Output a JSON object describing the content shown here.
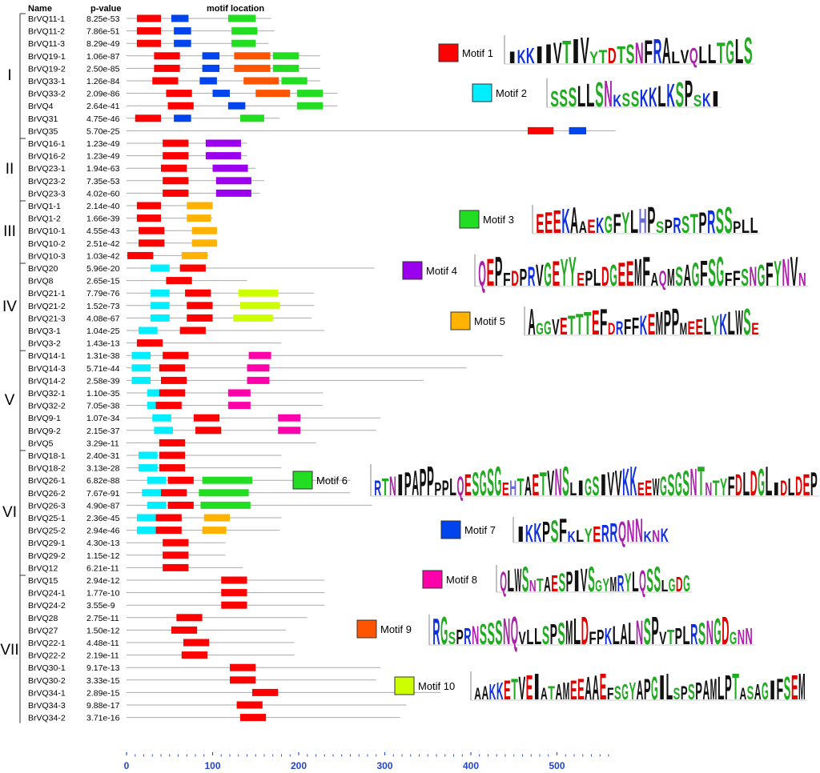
{
  "headers": {
    "name": "Name",
    "pvalue": "p-value",
    "motif_location": "motif location"
  },
  "axis": {
    "ticks": [
      0,
      100,
      200,
      300,
      400,
      500
    ]
  },
  "colors": {
    "1": "#ff0000",
    "2": "#00eeff",
    "3": "#22dd22",
    "4": "#9b00ee",
    "5": "#ffb300",
    "6": "#22dd22",
    "7": "#0044ee",
    "8": "#ff00aa",
    "9": "#ff5500",
    "10": "#ccff00"
  },
  "groups": [
    {
      "label": "I"
    },
    {
      "label": "II"
    },
    {
      "label": "III"
    },
    {
      "label": "IV"
    },
    {
      "label": "V"
    },
    {
      "label": "VI"
    },
    {
      "label": "VII"
    }
  ],
  "genes": [
    {
      "name": "BrVQ11-1",
      "p": "8.25e-53",
      "len": 168,
      "motifs": [
        [
          1,
          12,
          40
        ],
        [
          7,
          52,
          72
        ],
        [
          3,
          118,
          150
        ]
      ]
    },
    {
      "name": "BrVQ11-2",
      "p": "7.86e-51",
      "len": 172,
      "motifs": [
        [
          1,
          12,
          40
        ],
        [
          7,
          55,
          75
        ],
        [
          3,
          122,
          152
        ]
      ]
    },
    {
      "name": "BrVQ11-3",
      "p": "8.29e-49",
      "len": 165,
      "motifs": [
        [
          1,
          12,
          40
        ],
        [
          7,
          55,
          75
        ],
        [
          3,
          122,
          150
        ]
      ]
    },
    {
      "name": "BrVQ19-1",
      "p": "1.06e-87",
      "len": 225,
      "motifs": [
        [
          1,
          32,
          62
        ],
        [
          7,
          88,
          108
        ],
        [
          9,
          125,
          167
        ],
        [
          3,
          170,
          200
        ]
      ]
    },
    {
      "name": "BrVQ19-2",
      "p": "2.50e-85",
      "len": 225,
      "motifs": [
        [
          1,
          32,
          62
        ],
        [
          7,
          88,
          108
        ],
        [
          9,
          125,
          167
        ],
        [
          3,
          170,
          200
        ]
      ]
    },
    {
      "name": "BrVQ33-1",
      "p": "1.26e-84",
      "len": 225,
      "motifs": [
        [
          1,
          30,
          60
        ],
        [
          7,
          85,
          105
        ],
        [
          9,
          136,
          177
        ],
        [
          3,
          180,
          210
        ]
      ]
    },
    {
      "name": "BrVQ33-2",
      "p": "2.09e-86",
      "len": 245,
      "motifs": [
        [
          1,
          46,
          76
        ],
        [
          7,
          100,
          120
        ],
        [
          9,
          150,
          190
        ],
        [
          3,
          198,
          228
        ]
      ]
    },
    {
      "name": "BrVQ4",
      "p": "2.64e-41",
      "len": 245,
      "motifs": [
        [
          1,
          48,
          78
        ],
        [
          7,
          118,
          138
        ],
        [
          3,
          198,
          228
        ]
      ]
    },
    {
      "name": "BrVQ31",
      "p": "4.75e-46",
      "len": 178,
      "motifs": [
        [
          1,
          10,
          40
        ],
        [
          7,
          55,
          75
        ],
        [
          3,
          132,
          160
        ]
      ]
    },
    {
      "name": "BrVQ35",
      "p": "5.70e-25",
      "len": 568,
      "motifs": [
        [
          1,
          466,
          496
        ],
        [
          7,
          514,
          534
        ]
      ]
    },
    {
      "name": "BrVQ16-1",
      "p": "1.23e-49",
      "len": 140,
      "motifs": [
        [
          1,
          42,
          72
        ],
        [
          4,
          92,
          133
        ]
      ]
    },
    {
      "name": "BrVQ16-2",
      "p": "1.23e-49",
      "len": 140,
      "motifs": [
        [
          1,
          42,
          72
        ],
        [
          4,
          92,
          133
        ]
      ]
    },
    {
      "name": "BrVQ23-1",
      "p": "1.94e-63",
      "len": 150,
      "motifs": [
        [
          1,
          40,
          70
        ],
        [
          4,
          100,
          141
        ]
      ]
    },
    {
      "name": "BrVQ23-2",
      "p": "7.35e-53",
      "len": 160,
      "motifs": [
        [
          1,
          42,
          72
        ],
        [
          4,
          104,
          145
        ]
      ]
    },
    {
      "name": "BrVQ23-3",
      "p": "4.02e-60",
      "len": 155,
      "motifs": [
        [
          1,
          42,
          72
        ],
        [
          4,
          104,
          145
        ]
      ]
    },
    {
      "name": "BrVQ1-1",
      "p": "2.14e-40",
      "len": 100,
      "motifs": [
        [
          1,
          12,
          40
        ],
        [
          5,
          70,
          100
        ]
      ]
    },
    {
      "name": "BrVQ1-2",
      "p": "1.66e-39",
      "len": 100,
      "motifs": [
        [
          1,
          12,
          40
        ],
        [
          5,
          70,
          98
        ]
      ]
    },
    {
      "name": "BrVQ10-1",
      "p": "4.55e-43",
      "len": 105,
      "motifs": [
        [
          1,
          14,
          44
        ],
        [
          5,
          76,
          105
        ]
      ]
    },
    {
      "name": "BrVQ10-2",
      "p": "2.51e-42",
      "len": 105,
      "motifs": [
        [
          1,
          14,
          44
        ],
        [
          5,
          76,
          105
        ]
      ]
    },
    {
      "name": "BrVQ10-3",
      "p": "1.03e-42",
      "len": 95,
      "motifs": [
        [
          1,
          1,
          31
        ],
        [
          5,
          64,
          94
        ]
      ]
    },
    {
      "name": "BrVQ20",
      "p": "5.96e-20",
      "len": 288,
      "motifs": [
        [
          2,
          28,
          50
        ],
        [
          1,
          62,
          92
        ]
      ]
    },
    {
      "name": "BrVQ8",
      "p": "2.65e-15",
      "len": 140,
      "motifs": [
        [
          1,
          46,
          76
        ]
      ]
    },
    {
      "name": "BrVQ21-1",
      "p": "7.79e-76",
      "len": 218,
      "motifs": [
        [
          2,
          28,
          50
        ],
        [
          1,
          68,
          98
        ],
        [
          10,
          130,
          176
        ]
      ]
    },
    {
      "name": "BrVQ21-2",
      "p": "1.52e-73",
      "len": 218,
      "motifs": [
        [
          2,
          28,
          50
        ],
        [
          1,
          70,
          100
        ],
        [
          10,
          132,
          178
        ]
      ]
    },
    {
      "name": "BrVQ21-3",
      "p": "4.08e-67",
      "len": 215,
      "motifs": [
        [
          2,
          28,
          50
        ],
        [
          1,
          70,
          100
        ],
        [
          10,
          124,
          170
        ]
      ]
    },
    {
      "name": "BrVQ3-1",
      "p": "1.04e-25",
      "len": 230,
      "motifs": [
        [
          2,
          14,
          36
        ],
        [
          1,
          62,
          92
        ]
      ]
    },
    {
      "name": "BrVQ3-2",
      "p": "1.43e-13",
      "len": 180,
      "motifs": [
        [
          1,
          12,
          42
        ]
      ]
    },
    {
      "name": "BrVQ14-1",
      "p": "1.31e-38",
      "len": 437,
      "motifs": [
        [
          2,
          6,
          28
        ],
        [
          1,
          42,
          72
        ],
        [
          8,
          142,
          168
        ]
      ]
    },
    {
      "name": "BrVQ14-3",
      "p": "5.71e-44",
      "len": 395,
      "motifs": [
        [
          2,
          6,
          28
        ],
        [
          1,
          38,
          68
        ],
        [
          8,
          140,
          166
        ]
      ]
    },
    {
      "name": "BrVQ14-2",
      "p": "2.58e-39",
      "len": 345,
      "motifs": [
        [
          2,
          6,
          28
        ],
        [
          1,
          40,
          70
        ],
        [
          8,
          140,
          166
        ]
      ]
    },
    {
      "name": "BrVQ32-1",
      "p": "1.10e-35",
      "len": 228,
      "motifs": [
        [
          2,
          24,
          46
        ],
        [
          1,
          38,
          68
        ],
        [
          8,
          118,
          144
        ]
      ]
    },
    {
      "name": "BrVQ32-2",
      "p": "7.05e-38",
      "len": 228,
      "motifs": [
        [
          2,
          24,
          46
        ],
        [
          1,
          34,
          64
        ],
        [
          8,
          118,
          144
        ]
      ]
    },
    {
      "name": "BrVQ9-1",
      "p": "1.07e-34",
      "len": 295,
      "motifs": [
        [
          2,
          30,
          52
        ],
        [
          1,
          78,
          108
        ],
        [
          8,
          176,
          202
        ]
      ]
    },
    {
      "name": "BrVQ9-2",
      "p": "2.15e-37",
      "len": 290,
      "motifs": [
        [
          2,
          32,
          54
        ],
        [
          1,
          80,
          110
        ],
        [
          8,
          176,
          202
        ]
      ]
    },
    {
      "name": "BrVQ5",
      "p": "3.29e-11",
      "len": 220,
      "motifs": [
        [
          1,
          38,
          68
        ]
      ]
    },
    {
      "name": "BrVQ18-1",
      "p": "2.40e-31",
      "len": 180,
      "motifs": [
        [
          2,
          14,
          36
        ],
        [
          1,
          38,
          68
        ]
      ]
    },
    {
      "name": "BrVQ18-2",
      "p": "3.13e-28",
      "len": 180,
      "motifs": [
        [
          2,
          14,
          36
        ],
        [
          1,
          38,
          68
        ]
      ]
    },
    {
      "name": "BrVQ26-1",
      "p": "6.82e-88",
      "len": 260,
      "motifs": [
        [
          2,
          24,
          46
        ],
        [
          1,
          48,
          78
        ],
        [
          6,
          88,
          146
        ]
      ]
    },
    {
      "name": "BrVQ26-2",
      "p": "7.67e-91",
      "len": 260,
      "motifs": [
        [
          2,
          18,
          40
        ],
        [
          1,
          40,
          70
        ],
        [
          6,
          84,
          142
        ]
      ]
    },
    {
      "name": "BrVQ26-3",
      "p": "4.90e-87",
      "len": 285,
      "motifs": [
        [
          2,
          24,
          46
        ],
        [
          1,
          48,
          78
        ],
        [
          6,
          86,
          144
        ]
      ]
    },
    {
      "name": "BrVQ25-1",
      "p": "2.36e-45",
      "len": 180,
      "motifs": [
        [
          2,
          12,
          34
        ],
        [
          1,
          34,
          64
        ],
        [
          5,
          90,
          120
        ]
      ]
    },
    {
      "name": "BrVQ25-2",
      "p": "2.94e-46",
      "len": 178,
      "motifs": [
        [
          2,
          12,
          34
        ],
        [
          1,
          34,
          64
        ],
        [
          5,
          88,
          116
        ]
      ]
    },
    {
      "name": "BrVQ29-1",
      "p": "4.30e-13",
      "len": 115,
      "motifs": [
        [
          1,
          42,
          72
        ]
      ]
    },
    {
      "name": "BrVQ29-2",
      "p": "1.15e-12",
      "len": 115,
      "motifs": [
        [
          1,
          42,
          72
        ]
      ]
    },
    {
      "name": "BrVQ12",
      "p": "6.21e-11",
      "len": 135,
      "motifs": [
        [
          1,
          42,
          72
        ]
      ]
    },
    {
      "name": "BrVQ15",
      "p": "2.94e-12",
      "len": 230,
      "motifs": [
        [
          1,
          110,
          140
        ]
      ]
    },
    {
      "name": "BrVQ24-1",
      "p": "1.77e-10",
      "len": 230,
      "motifs": [
        [
          1,
          110,
          140
        ]
      ]
    },
    {
      "name": "BrVQ24-2",
      "p": "3.55e-9",
      "len": 230,
      "motifs": [
        [
          1,
          110,
          140
        ]
      ]
    },
    {
      "name": "BrVQ28",
      "p": "2.75e-11",
      "len": 210,
      "motifs": [
        [
          1,
          58,
          88
        ]
      ]
    },
    {
      "name": "BrVQ27",
      "p": "1.50e-12",
      "len": 185,
      "motifs": [
        [
          1,
          52,
          82
        ]
      ]
    },
    {
      "name": "BrVQ22-1",
      "p": "4.48e-11",
      "len": 195,
      "motifs": [
        [
          1,
          66,
          96
        ]
      ]
    },
    {
      "name": "BrVQ22-2",
      "p": "2.19e-11",
      "len": 195,
      "motifs": [
        [
          1,
          64,
          94
        ]
      ]
    },
    {
      "name": "BrVQ30-1",
      "p": "9.17e-13",
      "len": 295,
      "motifs": [
        [
          1,
          120,
          150
        ]
      ]
    },
    {
      "name": "BrVQ30-2",
      "p": "3.33e-15",
      "len": 290,
      "motifs": [
        [
          1,
          120,
          150
        ]
      ]
    },
    {
      "name": "BrVQ34-1",
      "p": "2.89e-15",
      "len": 365,
      "motifs": [
        [
          1,
          146,
          176
        ]
      ]
    },
    {
      "name": "BrVQ34-3",
      "p": "9.88e-17",
      "len": 325,
      "motifs": [
        [
          1,
          128,
          158
        ]
      ]
    },
    {
      "name": "BrVQ34-2",
      "p": "3.71e-16",
      "len": 318,
      "motifs": [
        [
          1,
          132,
          162
        ]
      ]
    }
  ],
  "motifs": [
    {
      "id": 1,
      "label": "Motif 1",
      "letters": "IKKIIVTIVYTDTSNFRALVQLLTGLS"
    },
    {
      "id": 2,
      "label": "Motif 2",
      "letters": "SSSLLSNKSSKKLKSPSKI"
    },
    {
      "id": 3,
      "label": "Motif 3",
      "letters": "EEEKAAEKGFYLHPSPRSTPRSSPLL"
    },
    {
      "id": 4,
      "label": "Motif 4",
      "letters": "QEPFDPRVGEYYEPLDGEEMFAQMSAGFSGFFSNGFYNVN"
    },
    {
      "id": 5,
      "label": "Motif 5",
      "letters": "AGGVETTTEFDRFFKEMPPMEELYKLWSE"
    },
    {
      "id": 6,
      "label": "Motif 6",
      "letters": "RTNIPAPPPPLQESGSGEHTAETVNSLIGSIVVKKEEWGSGSNTNTYFDLDGLIDLDEP"
    },
    {
      "id": 7,
      "label": "Motif 7",
      "letters": "IKKPSFKLYERRQNNKNK"
    },
    {
      "id": 8,
      "label": "Motif 8",
      "letters": "QLWSNTAESPIVSGYMRYLQSSLGDG"
    },
    {
      "id": 9,
      "label": "Motif 9",
      "letters": "RGSPRNSSSNQVLLSPSMLDFPKLALNSPVTPLRSNGDGNN"
    },
    {
      "id": 10,
      "label": "Motif 10",
      "letters": "AAKKETVEIATAMEEAAEFSGYAPGILSPSPAMLPTASAGIFSEM"
    }
  ]
}
